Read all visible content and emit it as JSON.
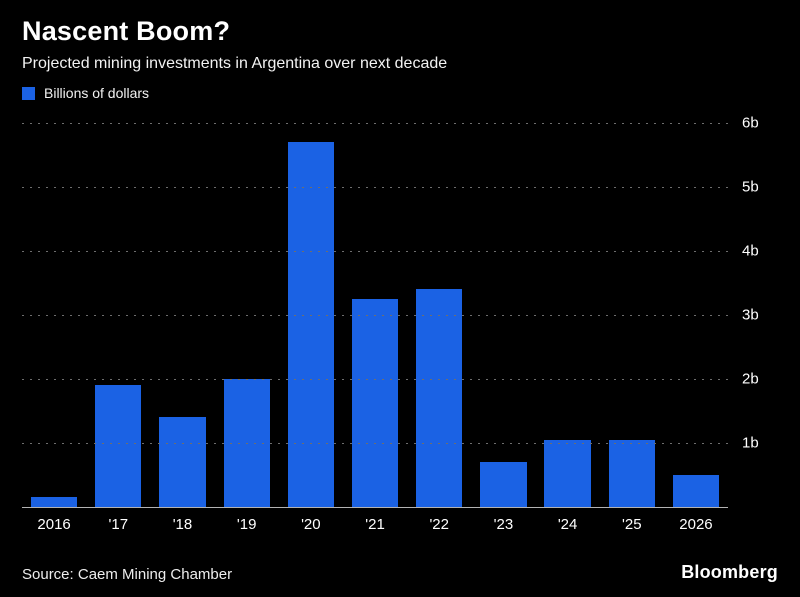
{
  "header": {
    "title": "Nascent Boom?",
    "subtitle": "Projected mining investments in Argentina over next decade",
    "legend_label": "Billions of dollars"
  },
  "chart_data": {
    "type": "bar",
    "title": "Nascent Boom?",
    "subtitle": "Projected mining investments in Argentina over next decade",
    "categories": [
      "2016",
      "'17",
      "'18",
      "'19",
      "'20",
      "'21",
      "'22",
      "'23",
      "'24",
      "'25",
      "2026"
    ],
    "values": [
      0.15,
      1.9,
      1.4,
      2.0,
      5.7,
      3.25,
      3.4,
      0.7,
      1.05,
      1.05,
      0.5
    ],
    "unit": "billions of dollars",
    "xlabel": "",
    "ylabel": "Billions of dollars",
    "ylim": [
      0,
      6
    ],
    "y_ticks": [
      "6b",
      "5b",
      "4b",
      "3b",
      "2b",
      "1b"
    ],
    "grid": "horizontal-dotted",
    "legend_position": "top-left",
    "bar_color": "#1b62e4",
    "background_color": "#000000"
  },
  "footer": {
    "source": "Source: Caem Mining Chamber",
    "brand": "Bloomberg"
  },
  "colors": {
    "background": "#000000",
    "bar": "#1b62e4",
    "text": "#ffffff",
    "gridline": "#6e6e6e"
  }
}
